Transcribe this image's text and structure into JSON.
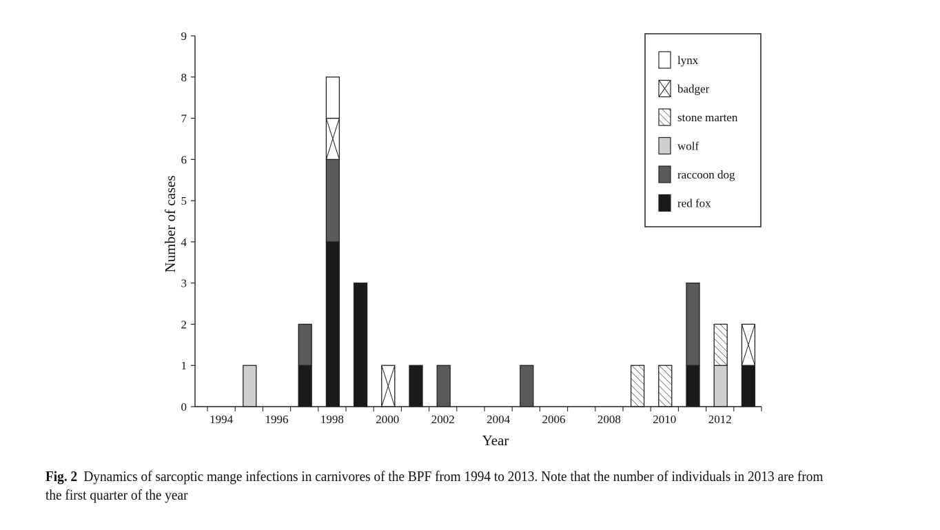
{
  "caption": {
    "label": "Fig. 2",
    "text": "Dynamics of sarcoptic mange infections in carnivores of the BPF from 1994 to 2013. Note that the number of individuals in 2013 are from the first quarter of the year"
  },
  "chart_data": {
    "type": "bar",
    "stacked": true,
    "title": "",
    "xlabel": "Year",
    "ylabel": "Number of cases",
    "ylim": [
      0,
      9
    ],
    "yticks": [
      0,
      1,
      2,
      3,
      4,
      5,
      6,
      7,
      8,
      9
    ],
    "categories": [
      1994,
      1995,
      1996,
      1997,
      1998,
      1999,
      2000,
      2001,
      2002,
      2003,
      2004,
      2005,
      2006,
      2007,
      2008,
      2009,
      2010,
      2011,
      2012,
      2013
    ],
    "xtick_labels": [
      "1994",
      "1996",
      "1998",
      "2000",
      "2002",
      "2004",
      "2006",
      "2008",
      "2010",
      "2012"
    ],
    "legend_position": "top-right",
    "grid": false,
    "series": [
      {
        "name": "red fox",
        "pattern": "solid-black",
        "color": "#1a1a1a",
        "values": [
          0,
          0,
          0,
          1,
          4,
          3,
          0,
          1,
          0,
          0,
          0,
          0,
          0,
          0,
          0,
          0,
          0,
          1,
          0,
          1
        ]
      },
      {
        "name": "raccoon dog",
        "pattern": "solid-dark-grey",
        "color": "#5a5a5a",
        "values": [
          0,
          0,
          0,
          1,
          2,
          0,
          0,
          0,
          1,
          0,
          0,
          1,
          0,
          0,
          0,
          0,
          0,
          2,
          0,
          0
        ]
      },
      {
        "name": "wolf",
        "pattern": "solid-light-grey",
        "color": "#cfcfcf",
        "values": [
          0,
          1,
          0,
          0,
          0,
          0,
          0,
          0,
          0,
          0,
          0,
          0,
          0,
          0,
          0,
          0,
          0,
          0,
          1,
          0
        ]
      },
      {
        "name": "stone marten",
        "pattern": "diagonal-hatch",
        "color": "#ffffff",
        "values": [
          0,
          0,
          0,
          0,
          0,
          0,
          0,
          0,
          0,
          0,
          0,
          0,
          0,
          0,
          0,
          1,
          1,
          0,
          1,
          0
        ]
      },
      {
        "name": "badger",
        "pattern": "cross-hatch",
        "color": "#ffffff",
        "values": [
          0,
          0,
          0,
          0,
          1,
          0,
          1,
          0,
          0,
          0,
          0,
          0,
          0,
          0,
          0,
          0,
          0,
          0,
          0,
          1
        ]
      },
      {
        "name": "lynx",
        "pattern": "solid-white",
        "color": "#ffffff",
        "values": [
          0,
          0,
          0,
          0,
          1,
          0,
          0,
          0,
          0,
          0,
          0,
          0,
          0,
          0,
          0,
          0,
          0,
          0,
          0,
          0
        ]
      }
    ]
  }
}
